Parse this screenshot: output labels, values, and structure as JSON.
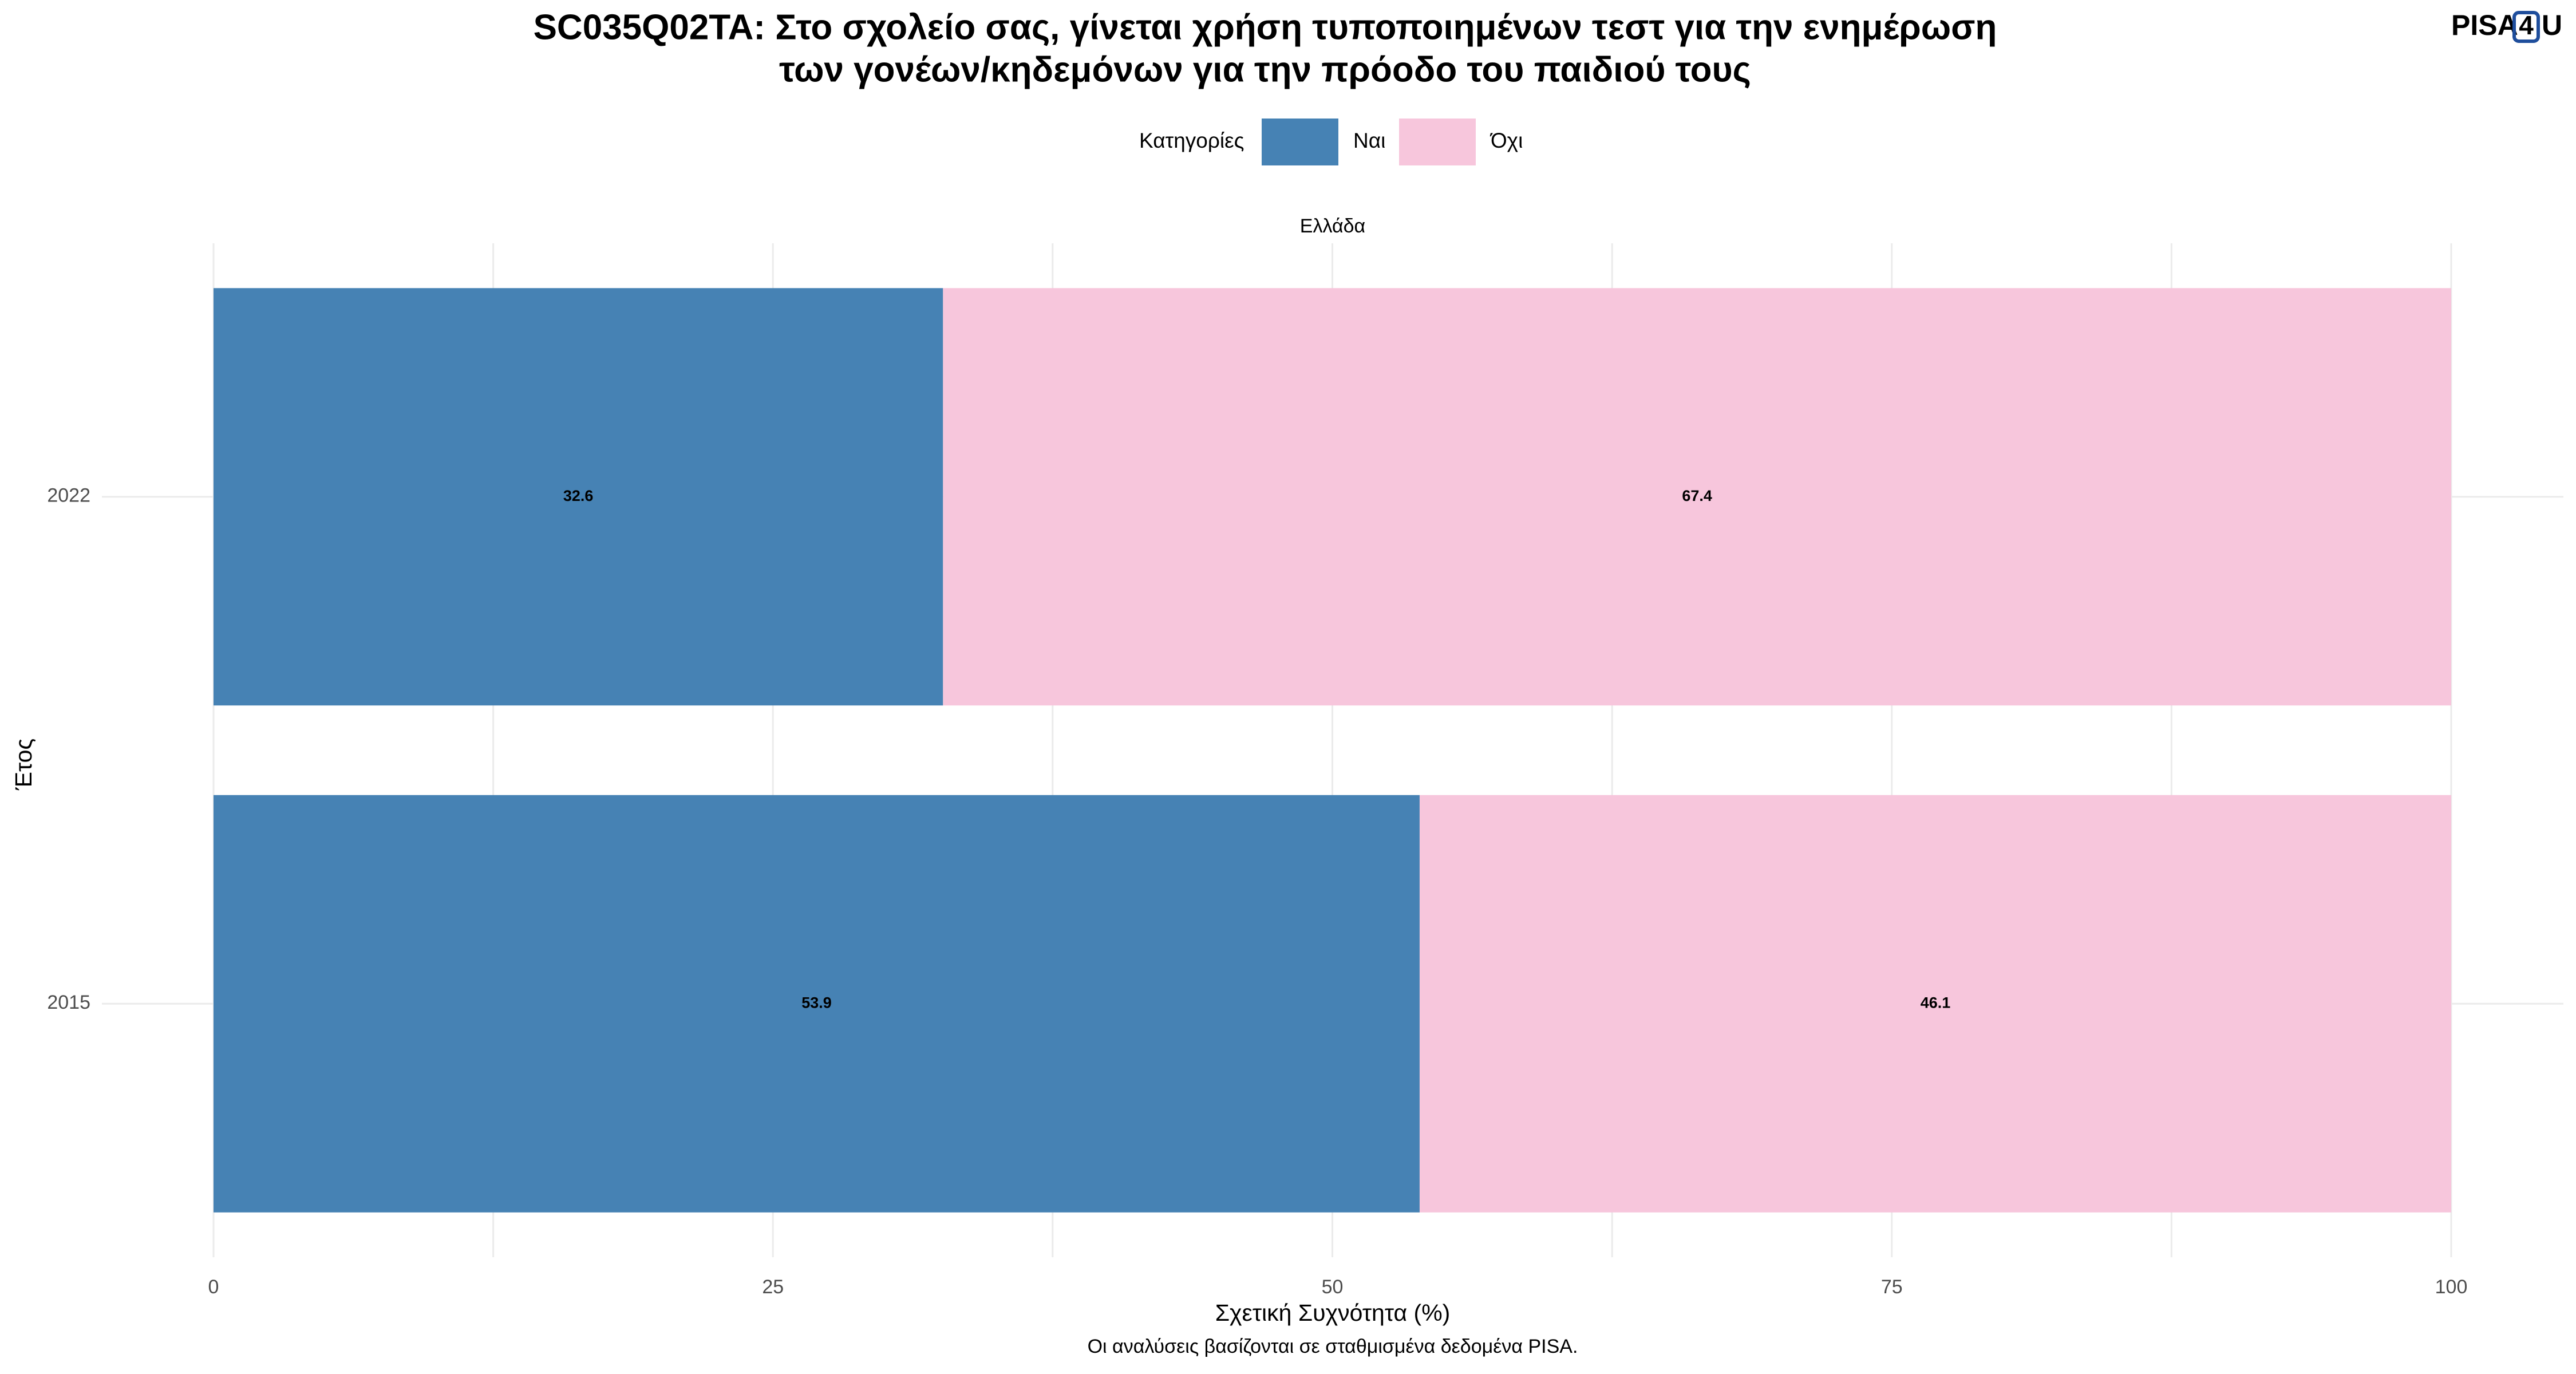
{
  "chart_data": {
    "type": "stacked-bar-horizontal",
    "title": [
      "SC035Q02TA: Στο σχολείο σας, γίνεται χρήση τυποποιημένων τεστ για την ενημέρωση",
      "των γονέων/κηδεμόνων για την πρόοδο του παιδιού τους"
    ],
    "logo": [
      "PISA",
      "4",
      "U"
    ],
    "legend_title": "Κατηγορίες",
    "facet": "Ελλάδα",
    "x_label": "Σχετική Συχνότητα (%)",
    "y_label": "Έτος",
    "caption": "Οι αναλύσεις βασίζονται σε σταθμισμένα δεδομένα PISA.",
    "categories": [
      "2022",
      "2015"
    ],
    "series": [
      {
        "name": "Ναι",
        "color": "#4682b4",
        "values": [
          32.6,
          53.9
        ]
      },
      {
        "name": "Όχι",
        "color": "#f7c6dc",
        "values": [
          67.4,
          46.1
        ]
      }
    ],
    "xlim": [
      0,
      100
    ],
    "xticks": [
      0,
      25,
      50,
      75,
      100
    ],
    "grid": true,
    "legend_position": "top"
  }
}
